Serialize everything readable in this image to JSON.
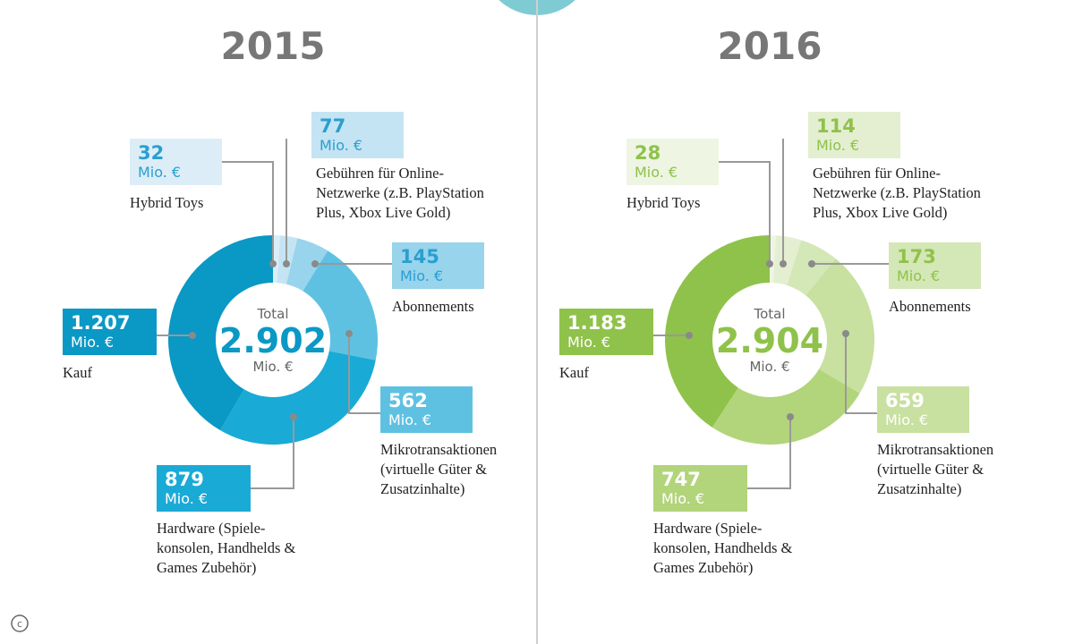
{
  "chart_data": [
    {
      "type": "donut",
      "title": "2015",
      "categories": [
        "Hybrid Toys",
        "Gebühren für Online-\nNetzwerke (z.B. PlayStation\nPlus, Xbox Live Gold)",
        "Abonnements",
        "Mikrotransaktionen\n(virtuelle Güter &\nZusatzinhalte)",
        "Hardware (Spiele-\nkonsolen, Handhelds &\nGames Zubehör)",
        "Kauf"
      ],
      "values": [
        32,
        77,
        145,
        562,
        879,
        1207
      ],
      "value_labels": [
        "32",
        "77",
        "145",
        "562",
        "879",
        "1.207"
      ],
      "colors": [
        "#dcedf7",
        "#c4e4f3",
        "#98d4ec",
        "#5fc1e2",
        "#1aaad6",
        "#0a98c5"
      ],
      "total_title": "Total",
      "total": {
        "value": 2902,
        "label": "2.902"
      },
      "unit": "Mio. €"
    },
    {
      "type": "donut",
      "title": "2016",
      "categories": [
        "Hybrid Toys",
        "Gebühren für Online-\nNetzwerke (z.B. PlayStation\nPlus, Xbox Live Gold)",
        "Abonnements",
        "Mikrotransaktionen\n(virtuelle Güter &\nZusatzinhalte)",
        "Hardware (Spiele-\nkonsolen, Handhelds &\nGames Zubehör)",
        "Kauf"
      ],
      "values": [
        28,
        114,
        173,
        659,
        747,
        1183
      ],
      "value_labels": [
        "28",
        "114",
        "173",
        "659",
        "747",
        "1.183"
      ],
      "colors": [
        "#eef5e3",
        "#e3efd0",
        "#d4e7b6",
        "#c8e0a0",
        "#b2d47b",
        "#8fc24a"
      ],
      "total_title": "Total",
      "total": {
        "value": 2904,
        "label": "2.904"
      },
      "unit": "Mio. €"
    }
  ]
}
